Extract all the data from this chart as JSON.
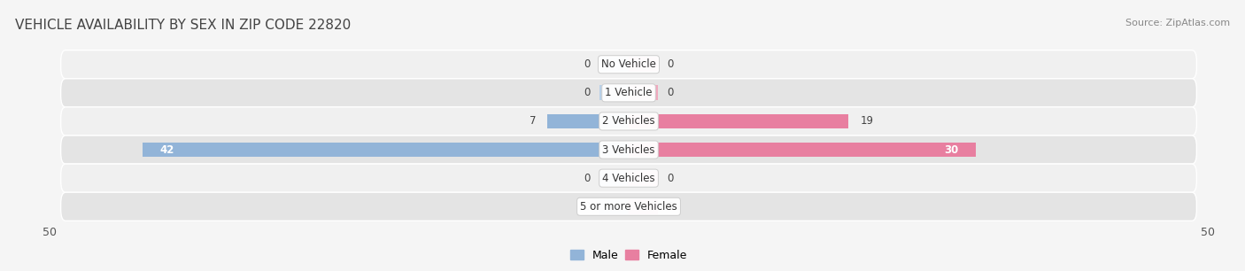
{
  "title": "VEHICLE AVAILABILITY BY SEX IN ZIP CODE 22820",
  "source": "Source: ZipAtlas.com",
  "categories": [
    "No Vehicle",
    "1 Vehicle",
    "2 Vehicles",
    "3 Vehicles",
    "4 Vehicles",
    "5 or more Vehicles"
  ],
  "male_values": [
    0,
    0,
    7,
    42,
    0,
    0
  ],
  "female_values": [
    0,
    0,
    19,
    30,
    0,
    0
  ],
  "male_color": "#92b4d8",
  "female_color": "#e87fa0",
  "male_zero_color": "#b8d0e8",
  "female_zero_color": "#f0a8be",
  "row_bg_light": "#f0f0f0",
  "row_bg_dark": "#e4e4e4",
  "xlim": 50,
  "legend_male": "Male",
  "legend_female": "Female",
  "title_fontsize": 11,
  "source_fontsize": 8,
  "label_fontsize": 8.5,
  "category_fontsize": 8.5,
  "bar_height": 0.52,
  "zero_stub": 2.5,
  "background_color": "#f5f5f5"
}
